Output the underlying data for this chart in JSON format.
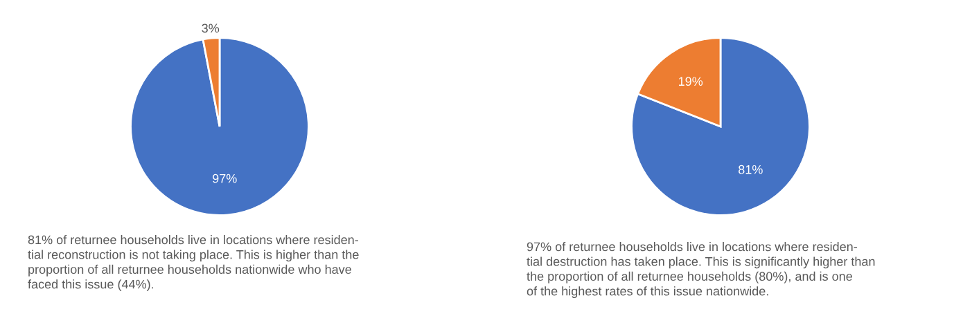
{
  "chart_data": [
    {
      "type": "pie",
      "categories": [
        null,
        null
      ],
      "values": [
        97,
        3
      ],
      "colors": [
        "#4472c4",
        "#ed7d31"
      ],
      "value_labels": [
        "97%",
        "3%"
      ],
      "annotations": [
        "81% of returnee households live in locations where residen-\ntial reconstruction is not taking place. This is higher than the\nproportion of all returnee households nationwide who have\nfaced this issue (44%)."
      ]
    },
    {
      "type": "pie",
      "categories": [
        null,
        null
      ],
      "values": [
        81,
        19
      ],
      "colors": [
        "#4472c4",
        "#ed7d31"
      ],
      "value_labels": [
        "81%",
        "19%"
      ],
      "annotations": [
        "97% of returnee households live in locations where residen-\ntial destruction has taken place. This is significantly higher than\nthe proportion of all returnee households (80%), and is one\nof the highest rates of this issue nationwide."
      ]
    }
  ]
}
